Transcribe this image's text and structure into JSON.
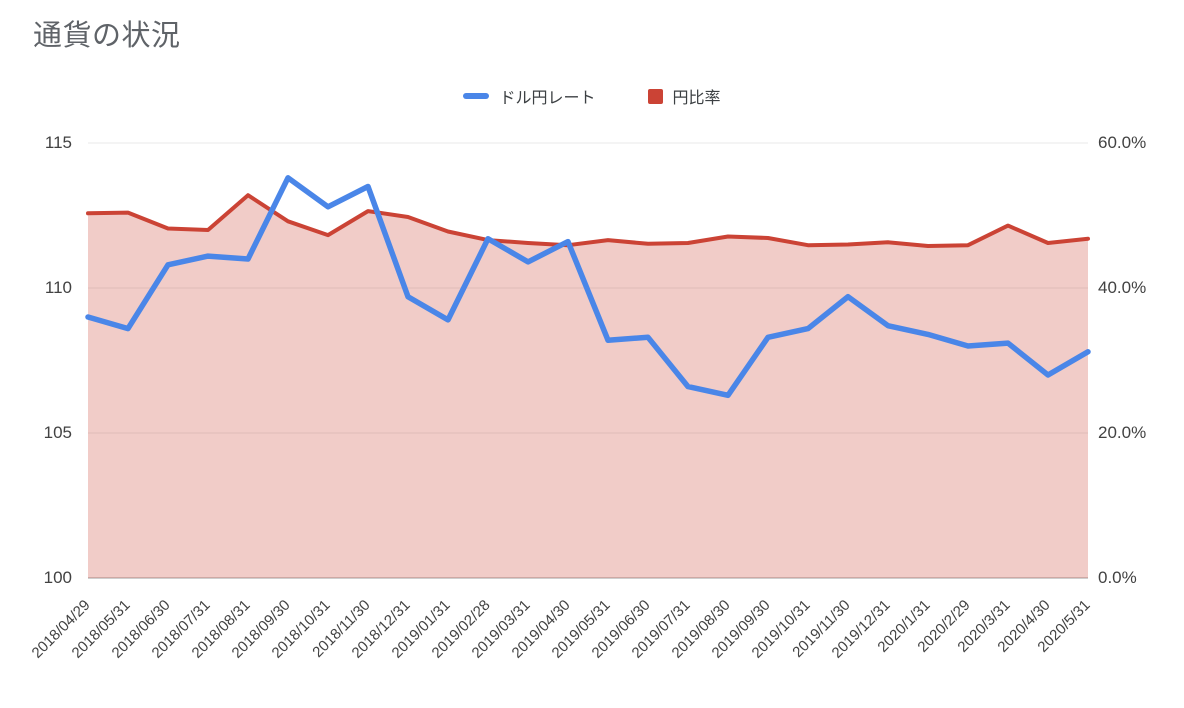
{
  "title": "通貨の状況",
  "legend": [
    {
      "label": "ドル円レート",
      "color": "#4a86e8",
      "marker": "line"
    },
    {
      "label": "円比率",
      "color": "#cb4335",
      "marker": "square"
    }
  ],
  "chart_data": {
    "type": "line",
    "title": "通貨の状況",
    "legend_position": "top",
    "grid": true,
    "categories": [
      "2018/04/29",
      "2018/05/31",
      "2018/06/30",
      "2018/07/31",
      "2018/08/31",
      "2018/09/30",
      "2018/10/31",
      "2018/11/30",
      "2018/12/31",
      "2019/01/31",
      "2019/02/28",
      "2019/03/31",
      "2019/04/30",
      "2019/05/31",
      "2019/06/30",
      "2019/07/31",
      "2019/08/30",
      "2019/09/30",
      "2019/10/31",
      "2019/11/30",
      "2019/12/31",
      "2020/1/31",
      "2020/2/29",
      "2020/3/31",
      "2020/4/30",
      "2020/5/31"
    ],
    "series": [
      {
        "name": "ドル円レート",
        "axis": "left",
        "style": "line",
        "color": "#4a86e8",
        "values": [
          109.0,
          108.6,
          110.8,
          111.1,
          111.0,
          113.8,
          112.8,
          113.5,
          109.7,
          108.9,
          111.7,
          110.9,
          111.6,
          108.2,
          108.3,
          106.6,
          106.3,
          108.3,
          108.6,
          109.7,
          108.7,
          108.4,
          108.0,
          108.1,
          107.0,
          107.8
        ]
      },
      {
        "name": "円比率",
        "axis": "right",
        "style": "area-line",
        "color": "#cb4335",
        "area_fill": "rgba(203,67,53,0.27)",
        "values": [
          50.3,
          50.4,
          48.2,
          48.0,
          52.8,
          49.2,
          47.3,
          50.6,
          49.8,
          47.8,
          46.6,
          46.2,
          45.9,
          46.6,
          46.1,
          46.2,
          47.1,
          46.9,
          45.9,
          46.0,
          46.3,
          45.8,
          45.9,
          48.6,
          46.2,
          46.8
        ]
      }
    ],
    "left_axis": {
      "min": 100,
      "max": 115,
      "ticks": [
        115,
        110,
        105,
        100
      ],
      "tick_labels": [
        "115",
        "110",
        "105",
        "100"
      ]
    },
    "right_axis": {
      "min": 0,
      "max": 60,
      "ticks": [
        60,
        40,
        20,
        0
      ],
      "tick_labels": [
        "60.0%",
        "40.0%",
        "20.0%",
        "0.0%"
      ]
    },
    "colors": {
      "grid": "#e8e8e8",
      "baseline": "#9e9e9e"
    }
  }
}
